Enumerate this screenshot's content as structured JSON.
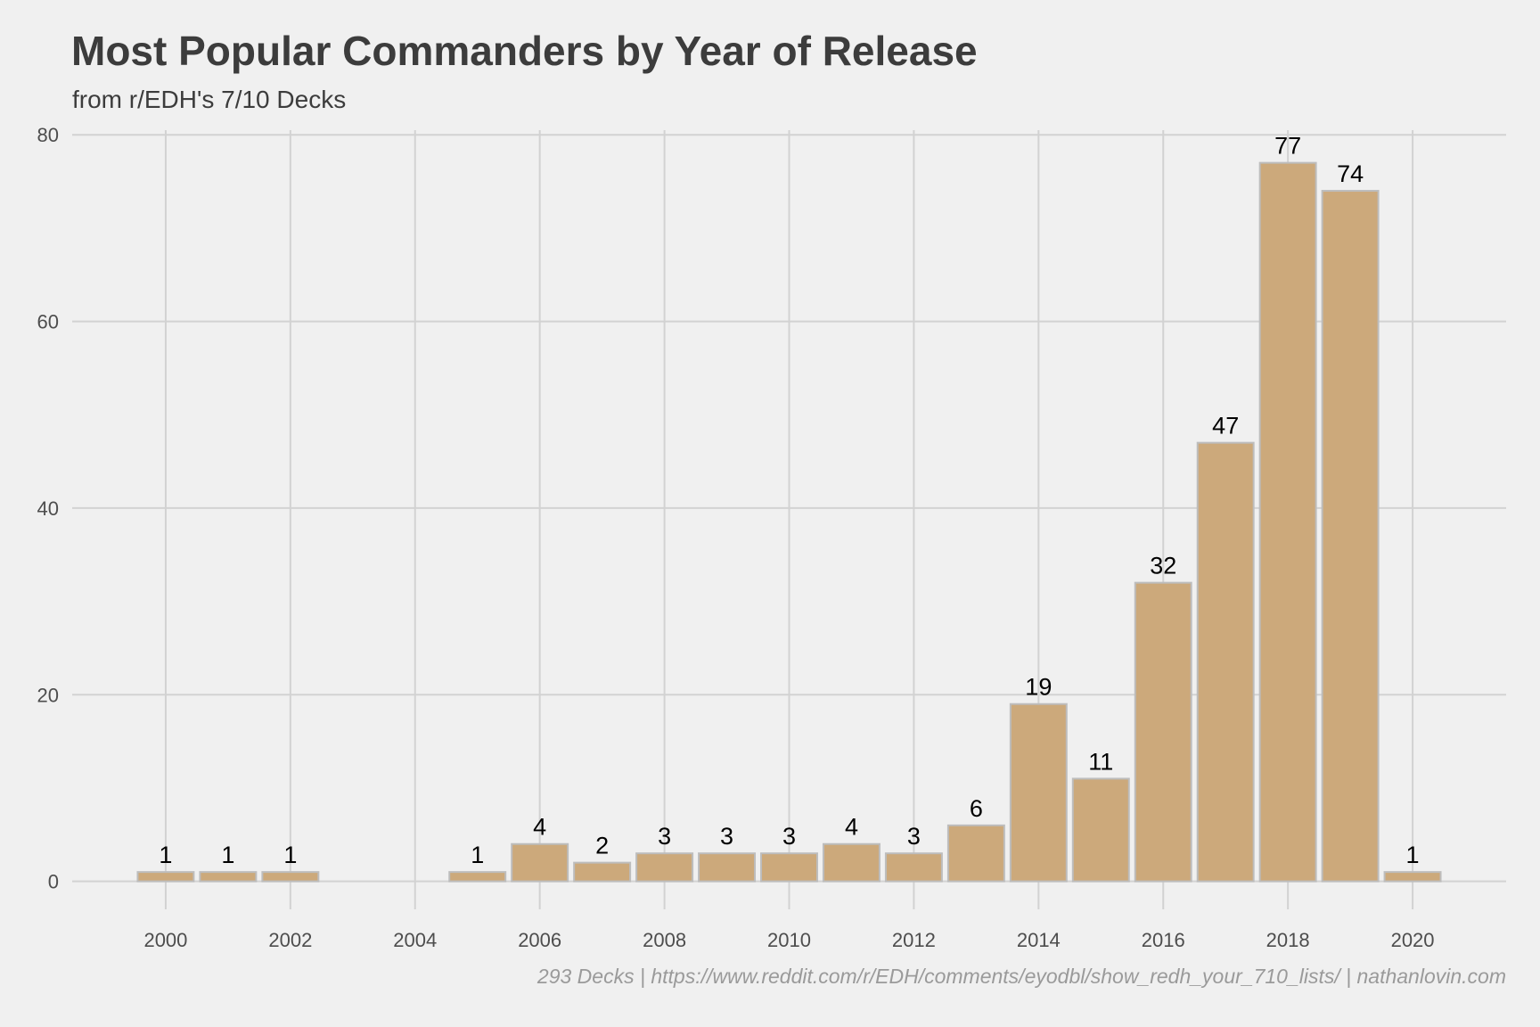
{
  "title": "Most Popular Commanders by Year of Release",
  "subtitle": "from r/EDH's 7/10 Decks",
  "caption": "293 Decks | https://www.reddit.com/r/EDH/comments/eyodbl/show_redh_your_710_lists/ | nathanlovin.com",
  "colors": {
    "background": "#f0f0f0",
    "bar_fill": "#cca97b",
    "bar_stroke": "#bdbdbd",
    "grid": "#d2d2d2"
  },
  "chart_data": {
    "type": "bar",
    "categories": [
      2000,
      2001,
      2002,
      2005,
      2006,
      2007,
      2008,
      2009,
      2010,
      2011,
      2012,
      2013,
      2014,
      2015,
      2016,
      2017,
      2018,
      2019,
      2020
    ],
    "values": [
      1,
      1,
      1,
      1,
      4,
      2,
      3,
      3,
      3,
      4,
      3,
      6,
      19,
      11,
      32,
      47,
      77,
      74,
      1
    ],
    "data_labels": [
      "1",
      "1",
      "1",
      "1",
      "4",
      "2",
      "3",
      "3",
      "3",
      "4",
      "3",
      "6",
      "19",
      "11",
      "32",
      "47",
      "77",
      "74",
      "1"
    ],
    "xlabel": "",
    "ylabel": "",
    "xlim": [
      1998.5,
      2021.5
    ],
    "ylim": [
      -3,
      80.5
    ],
    "x_ticks": [
      2000,
      2002,
      2004,
      2006,
      2008,
      2010,
      2012,
      2014,
      2016,
      2018,
      2020
    ],
    "x_tick_labels": [
      "2000",
      "2002",
      "2004",
      "2006",
      "2008",
      "2010",
      "2012",
      "2014",
      "2016",
      "2018",
      "2020"
    ],
    "y_ticks": [
      0,
      20,
      40,
      60,
      80
    ],
    "y_tick_labels": [
      "0",
      "20",
      "40",
      "60",
      "80"
    ],
    "grid": true,
    "legend": "none"
  }
}
